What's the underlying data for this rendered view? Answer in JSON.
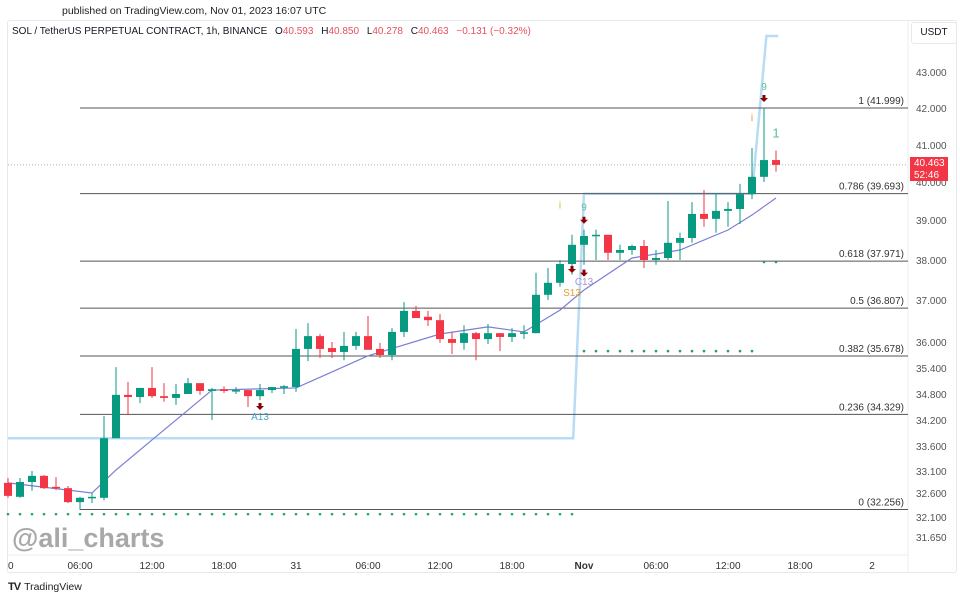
{
  "published": "published on TradingView.com, Nov 01, 2023 16:07 UTC",
  "header": {
    "symbol": "SOL / TetherUS PERPETUAL CONTRACT, 1h, BINANCE",
    "o_label": "O",
    "o": "40.593",
    "h_label": "H",
    "h": "40.850",
    "l_label": "L",
    "l": "40.278",
    "c_label": "C",
    "c": "40.463",
    "change": "−0.131 (−0.32%)"
  },
  "currency_button": "USDT",
  "price_label": {
    "price": "40.463",
    "countdown": "52:46"
  },
  "watermark": "@ali_charts",
  "footer": {
    "logo_text": "TradingView"
  },
  "colors": {
    "up": "#089981",
    "down": "#f23645",
    "ma": "#7b7fd4",
    "step_line": "#b8dcf5",
    "dots": "#2e9e5b",
    "marker_arrow": "#8b0000"
  },
  "chart_data": {
    "type": "candlestick",
    "timeframe": "1h",
    "y_ticks": [
      43.0,
      42.0,
      41.0,
      40.0,
      39.0,
      38.0,
      37.0,
      36.0,
      35.4,
      34.8,
      34.2,
      33.6,
      33.1,
      32.6,
      32.1,
      31.65
    ],
    "y_tick_labels": [
      "43.000",
      "42.000",
      "41.000",
      "40.000",
      "39.000",
      "38.000",
      "37.000",
      "36.000",
      "35.400",
      "34.800",
      "34.200",
      "33.600",
      "33.100",
      "32.600",
      "32.100",
      "31.650"
    ],
    "x_tick_labels": [
      "0",
      "06:00",
      "12:00",
      "18:00",
      "31",
      "06:00",
      "12:00",
      "18:00",
      "Nov",
      "06:00",
      "12:00",
      "18:00",
      "2"
    ],
    "x_tick_hours": [
      0,
      6,
      12,
      18,
      24,
      30,
      36,
      42,
      48,
      54,
      60,
      66,
      72
    ],
    "bold_x_ticks": [
      "Nov"
    ],
    "candles": [
      [
        32.83,
        32.94,
        32.5,
        32.54
      ],
      [
        32.52,
        32.94,
        32.5,
        32.85
      ],
      [
        32.85,
        33.1,
        32.65,
        32.99
      ],
      [
        32.99,
        33.01,
        32.69,
        32.71
      ],
      [
        32.74,
        32.96,
        32.67,
        32.71
      ],
      [
        32.71,
        32.76,
        32.39,
        32.41
      ],
      [
        32.41,
        32.52,
        32.25,
        32.5
      ],
      [
        32.5,
        32.6,
        32.39,
        32.52
      ],
      [
        32.5,
        34.29,
        32.45,
        33.78
      ],
      [
        33.78,
        35.42,
        33.78,
        34.78
      ],
      [
        34.78,
        35.08,
        34.32,
        34.73
      ],
      [
        34.73,
        34.94,
        34.59,
        34.94
      ],
      [
        34.94,
        35.42,
        34.71,
        34.75
      ],
      [
        34.75,
        35.05,
        34.62,
        34.71
      ],
      [
        34.71,
        35.03,
        34.55,
        34.8
      ],
      [
        34.8,
        35.17,
        34.8,
        35.05
      ],
      [
        35.05,
        35.05,
        34.78,
        34.87
      ],
      [
        34.87,
        34.94,
        34.2,
        34.91
      ],
      [
        34.91,
        34.98,
        34.82,
        34.87
      ],
      [
        34.87,
        34.96,
        34.8,
        34.89
      ],
      [
        34.89,
        34.89,
        34.5,
        34.75
      ],
      [
        34.75,
        35.03,
        34.66,
        34.89
      ],
      [
        34.89,
        34.96,
        34.82,
        34.96
      ],
      [
        34.96,
        35.01,
        34.8,
        34.98
      ],
      [
        34.96,
        36.31,
        34.85,
        35.84
      ],
      [
        35.84,
        36.45,
        35.56,
        36.14
      ],
      [
        36.14,
        36.19,
        35.63,
        35.84
      ],
      [
        35.86,
        36.0,
        35.63,
        35.77
      ],
      [
        35.77,
        36.24,
        35.58,
        35.91
      ],
      [
        35.91,
        36.24,
        35.82,
        36.14
      ],
      [
        36.14,
        36.62,
        35.82,
        35.82
      ],
      [
        35.84,
        35.98,
        35.63,
        35.7
      ],
      [
        35.7,
        36.33,
        35.58,
        36.24
      ],
      [
        36.24,
        36.95,
        36.12,
        36.74
      ],
      [
        36.74,
        36.86,
        36.57,
        36.57
      ],
      [
        36.6,
        36.74,
        36.38,
        36.52
      ],
      [
        36.52,
        36.67,
        35.98,
        36.07
      ],
      [
        36.07,
        36.24,
        35.72,
        35.98
      ],
      [
        35.98,
        36.4,
        35.82,
        36.21
      ],
      [
        36.21,
        36.24,
        35.58,
        36.07
      ],
      [
        36.07,
        36.43,
        35.95,
        36.21
      ],
      [
        36.21,
        36.21,
        35.79,
        36.12
      ],
      [
        36.12,
        36.33,
        36.0,
        36.21
      ],
      [
        36.21,
        36.4,
        36.07,
        36.23
      ],
      [
        36.21,
        37.68,
        36.21,
        37.13
      ],
      [
        37.13,
        37.8,
        37.0,
        37.43
      ],
      [
        37.43,
        38.0,
        37.33,
        37.9
      ],
      [
        37.9,
        38.63,
        37.63,
        38.38
      ],
      [
        38.38,
        38.76,
        37.88,
        38.6
      ],
      [
        38.6,
        38.76,
        38.0,
        38.63
      ],
      [
        38.63,
        38.63,
        38.0,
        38.18
      ],
      [
        38.18,
        38.38,
        38.0,
        38.25
      ],
      [
        38.25,
        38.38,
        38.13,
        38.35
      ],
      [
        38.35,
        38.5,
        37.8,
        38.0
      ],
      [
        38.0,
        38.25,
        37.88,
        38.05
      ],
      [
        38.05,
        39.5,
        38.0,
        38.43
      ],
      [
        38.43,
        38.68,
        38.0,
        38.55
      ],
      [
        38.55,
        39.47,
        38.43,
        39.16
      ],
      [
        39.16,
        39.79,
        38.83,
        39.03
      ],
      [
        39.03,
        39.71,
        38.68,
        39.24
      ],
      [
        39.24,
        39.47,
        38.83,
        39.29
      ],
      [
        39.29,
        39.95,
        38.9,
        39.68
      ],
      [
        39.68,
        40.92,
        39.55,
        40.14
      ],
      [
        40.14,
        41.999,
        40.0,
        40.593
      ],
      [
        40.593,
        40.85,
        40.278,
        40.463
      ]
    ],
    "moving_average": [
      [
        0,
        32.83
      ],
      [
        7,
        32.6
      ],
      [
        9,
        33.12
      ],
      [
        12,
        33.74
      ],
      [
        15,
        34.43
      ],
      [
        17,
        34.89
      ],
      [
        24,
        34.94
      ],
      [
        27,
        35.31
      ],
      [
        30,
        35.68
      ],
      [
        36,
        36.19
      ],
      [
        40,
        36.36
      ],
      [
        43,
        36.24
      ],
      [
        46,
        36.76
      ],
      [
        48,
        37.25
      ],
      [
        52,
        38.05
      ],
      [
        56,
        38.25
      ],
      [
        60,
        38.75
      ],
      [
        62,
        39.13
      ],
      [
        64,
        39.58
      ]
    ],
    "step_line": [
      [
        0,
        33.78
      ],
      [
        47.1,
        33.78
      ],
      [
        48,
        39.69
      ],
      [
        62,
        39.69
      ],
      [
        63.2,
        44.0
      ],
      [
        64.2,
        44.0
      ]
    ],
    "dot_rows": [
      {
        "price": 32.16,
        "from": 0,
        "to": 47
      },
      {
        "price": 35.79,
        "from": 48,
        "to": 62
      },
      {
        "price": 37.95,
        "from": 63,
        "to": 64
      }
    ],
    "fib_levels": [
      {
        "ratio": "1",
        "price": 41.999,
        "label": "1 (41.999)"
      },
      {
        "ratio": "0.786",
        "price": 39.693,
        "label": "0.786 (39.693)"
      },
      {
        "ratio": "0.618",
        "price": 37.971,
        "label": "0.618 (37.971)"
      },
      {
        "ratio": "0.5",
        "price": 36.807,
        "label": "0.5 (36.807)"
      },
      {
        "ratio": "0.382",
        "price": 35.678,
        "label": "0.382 (35.678)"
      },
      {
        "ratio": "0.236",
        "price": 34.329,
        "label": "0.236 (34.329)"
      },
      {
        "ratio": "0",
        "price": 32.256,
        "label": "0 (32.256)"
      }
    ],
    "last_price": 40.463,
    "markers": [
      {
        "hour": 21,
        "type": "arrow-down",
        "price": 34.5
      },
      {
        "hour": 47,
        "type": "arrow-down",
        "price": 37.75
      },
      {
        "hour": 48,
        "type": "arrow-down",
        "price": 38.98
      },
      {
        "hour": 48,
        "type": "arrow-down",
        "price": 37.66
      },
      {
        "hour": 63,
        "type": "arrow-down",
        "price": 42.25
      }
    ],
    "annotations": [
      {
        "hour": 21,
        "text": "A13",
        "price": 34.2,
        "color": "#4aa3c8"
      },
      {
        "hour": 47,
        "text": "S13",
        "price": 37.1,
        "color": "#e0a030"
      },
      {
        "hour": 48,
        "text": "C13",
        "price": 37.38,
        "color": "#a890d8"
      },
      {
        "hour": 48,
        "text": "9",
        "price": 39.25,
        "color": "#5bbf9a"
      },
      {
        "hour": 46,
        "text": "i",
        "price": 39.3,
        "color": "#d8b030"
      },
      {
        "hour": 63,
        "text": "9",
        "price": 42.5,
        "color": "#5bbf9a"
      },
      {
        "hour": 62,
        "text": "i",
        "price": 41.65,
        "color": "#e09030"
      },
      {
        "hour": 64,
        "text": "1",
        "price": 41.2,
        "color": "#5bbf9a"
      }
    ]
  }
}
